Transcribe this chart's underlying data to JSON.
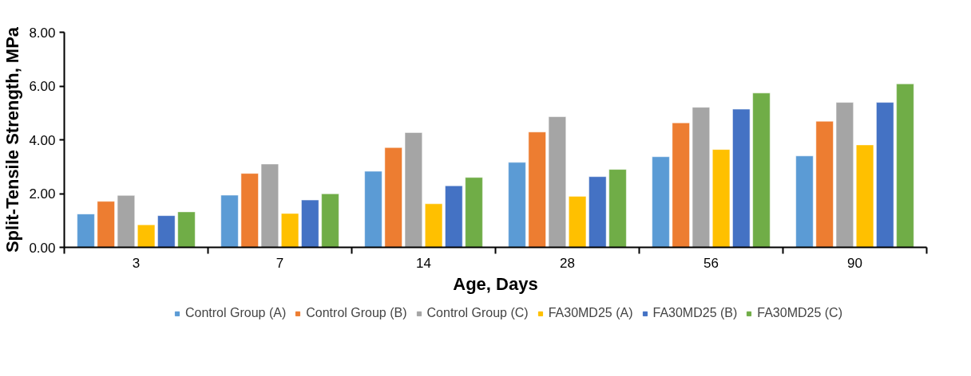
{
  "chart_data": {
    "type": "bar",
    "xlabel": "Age, Days",
    "ylabel": "Split-Tensile Strength, MPa",
    "categories": [
      "3",
      "7",
      "14",
      "28",
      "56",
      "90"
    ],
    "series": [
      {
        "name": "Control Group (A)",
        "color": "#5b9bd5",
        "values": [
          1.24,
          1.94,
          2.83,
          3.16,
          3.37,
          3.4
        ]
      },
      {
        "name": "Control Group (B)",
        "color": "#ed7d31",
        "values": [
          1.71,
          2.75,
          3.71,
          4.29,
          4.63,
          4.69
        ]
      },
      {
        "name": "Control Group (C)",
        "color": "#a5a5a5",
        "values": [
          1.93,
          3.1,
          4.27,
          4.86,
          5.21,
          5.39
        ]
      },
      {
        "name": "FA30MD25 (A)",
        "color": "#ffc000",
        "values": [
          0.84,
          1.26,
          1.62,
          1.9,
          3.64,
          3.81
        ]
      },
      {
        "name": "FA30MD25 (B)",
        "color": "#4472c4",
        "values": [
          1.18,
          1.76,
          2.29,
          2.63,
          5.14,
          5.39
        ]
      },
      {
        "name": "FA30MD25 (C)",
        "color": "#70ad47",
        "values": [
          1.32,
          1.99,
          2.6,
          2.9,
          5.74,
          6.08
        ]
      }
    ],
    "ylim": [
      0,
      8
    ],
    "yticks": [
      {
        "value": 0,
        "label": "0.00"
      },
      {
        "value": 2,
        "label": "2.00"
      },
      {
        "value": 4,
        "label": "4.00"
      },
      {
        "value": 6,
        "label": "6.00"
      },
      {
        "value": 8,
        "label": "8.00"
      }
    ],
    "grid": false,
    "legend": "bottom"
  }
}
